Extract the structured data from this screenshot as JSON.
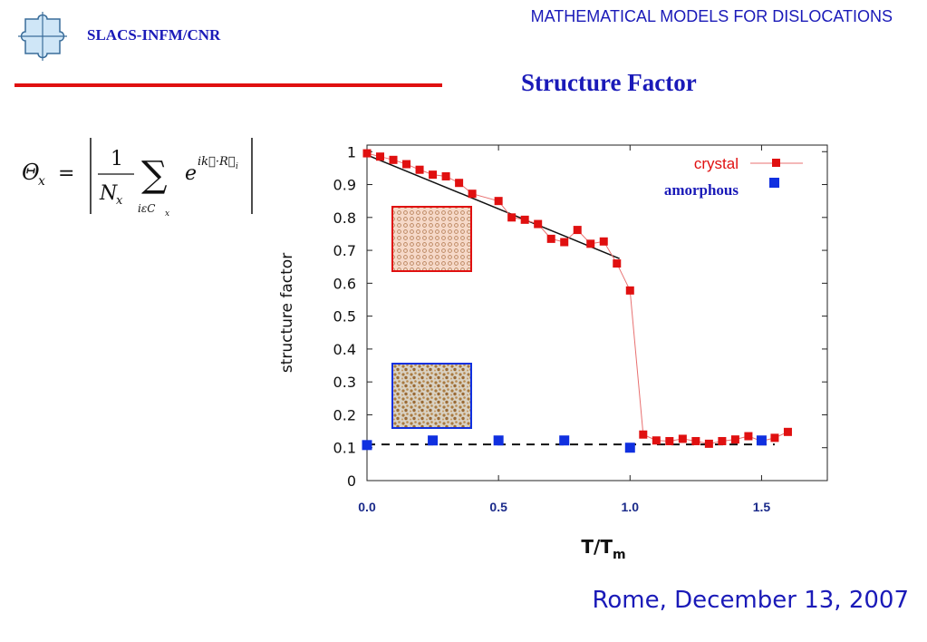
{
  "header": {
    "org_label": "SLACS-INFM/CNR",
    "course_title": "MATHEMATICAL MODELS FOR DISLOCATIONS",
    "logo_icon": "puzzle-piece-logo-icon"
  },
  "slide": {
    "title": "Structure Factor"
  },
  "formula": {
    "lhs_symbol": "Θ",
    "lhs_sub": "x",
    "numerator": "1",
    "denominator_symbol": "N",
    "denominator_sub": "x",
    "sum_sub": "iεC",
    "sum_sub_index": "x",
    "exp_base": "e",
    "exp_power": "ik⃗·R⃗",
    "exp_power_sub": "i"
  },
  "footer": {
    "date": "Rome, December 13, 2007"
  },
  "colors": {
    "accent": "#1a1ab8",
    "rule": "#e01010",
    "crystal": "#e01010",
    "amorphous": "#1030e0"
  },
  "chart_data": {
    "type": "scatter",
    "xlabel": "T/T",
    "xlabel_sub": "m",
    "ylabel": "structure factor",
    "xlim": [
      0,
      1.75
    ],
    "ylim": [
      0,
      1.02
    ],
    "xticks": [
      0,
      0.5,
      1.0,
      1.5
    ],
    "xtick_labels": [
      "0.0",
      "0.5",
      "1.0",
      "1.5"
    ],
    "yticks": [
      0,
      0.1,
      0.2,
      0.3,
      0.4,
      0.5,
      0.6,
      0.7,
      0.8,
      0.9,
      1
    ],
    "ytick_labels": [
      "0",
      "0.1",
      "0.2",
      "0.3",
      "0.4",
      "0.5",
      "0.6",
      "0.7",
      "0.8",
      "0.9",
      "1"
    ],
    "grid": false,
    "legend_position": "top-right",
    "series": [
      {
        "name": "crystal",
        "marker": "square",
        "connected": true,
        "x": [
          0.0,
          0.05,
          0.1,
          0.15,
          0.2,
          0.25,
          0.3,
          0.35,
          0.4,
          0.5,
          0.55,
          0.6,
          0.65,
          0.7,
          0.75,
          0.8,
          0.85,
          0.9,
          0.95,
          1.0,
          1.05,
          1.1,
          1.15,
          1.2,
          1.25,
          1.3,
          1.35,
          1.4,
          1.45,
          1.5,
          1.55,
          1.6
        ],
        "y": [
          0.995,
          0.985,
          0.975,
          0.962,
          0.945,
          0.93,
          0.925,
          0.905,
          0.872,
          0.85,
          0.8,
          0.793,
          0.78,
          0.735,
          0.725,
          0.762,
          0.72,
          0.727,
          0.66,
          0.578,
          0.14,
          0.122,
          0.12,
          0.127,
          0.12,
          0.112,
          0.12,
          0.125,
          0.135,
          0.12,
          0.13,
          0.148
        ]
      },
      {
        "name": "amorphous",
        "marker": "square",
        "connected": false,
        "x": [
          0.0,
          0.25,
          0.5,
          0.75,
          1.0,
          1.5
        ],
        "y": [
          0.108,
          0.122,
          0.122,
          0.122,
          0.1,
          0.122
        ]
      }
    ],
    "fit_lines": [
      {
        "style": "solid",
        "x": [
          0.0,
          0.96
        ],
        "y": [
          0.99,
          0.675
        ]
      },
      {
        "style": "dashed",
        "x": [
          0.0,
          1.55
        ],
        "y": [
          0.11,
          0.11
        ]
      }
    ],
    "insets": [
      {
        "description_key": "crystal-lattice",
        "frame_color": "#e01010"
      },
      {
        "description_key": "amorphous-structure",
        "frame_color": "#1030e0"
      }
    ]
  }
}
